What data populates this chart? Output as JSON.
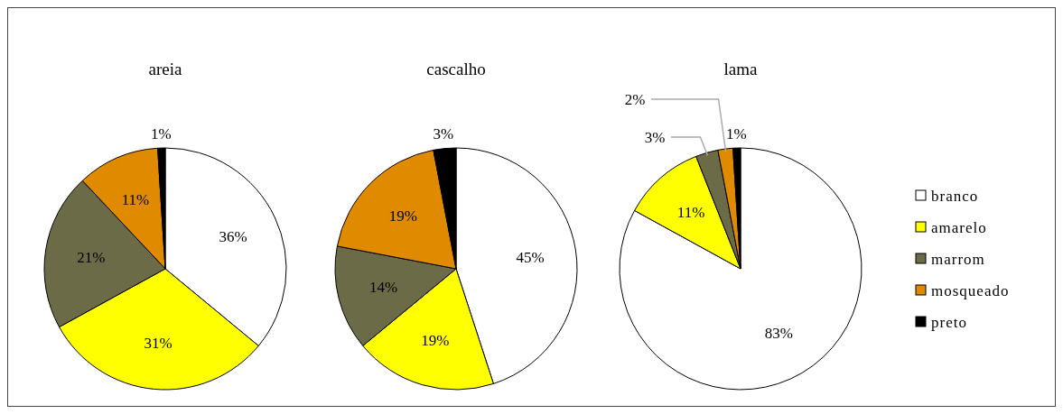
{
  "chart_data": [
    {
      "type": "pie",
      "title": "areia",
      "categories": [
        null,
        null,
        null,
        null,
        null
      ],
      "values": [
        36,
        31,
        21,
        11,
        1
      ],
      "colors": [
        "#ffffff",
        "#ffff00",
        "#6b6b47",
        "#e08a00",
        "#000000"
      ],
      "value_labels": [
        "36%",
        "31%",
        "21%",
        "11%",
        "1%"
      ]
    },
    {
      "type": "pie",
      "title": "cascalho",
      "categories": [
        null,
        null,
        null,
        null,
        null
      ],
      "values": [
        45,
        19,
        14,
        19,
        3
      ],
      "colors": [
        "#ffffff",
        "#ffff00",
        "#6b6b47",
        "#e08a00",
        "#000000"
      ],
      "value_labels": [
        "45%",
        "19%",
        "14%",
        "19%",
        "3%"
      ]
    },
    {
      "type": "pie",
      "title": "lama",
      "categories": [
        "branco",
        "amarelo",
        "marrom",
        "mosqueado",
        "preto"
      ],
      "values": [
        83,
        11,
        3,
        2,
        1
      ],
      "colors": [
        "#ffffff",
        "#ffff00",
        "#6b6b47",
        "#e08a00",
        "#000000"
      ],
      "value_labels": [
        "83%",
        "11%",
        "3%",
        "2%",
        "1%"
      ],
      "legend": "right"
    }
  ]
}
